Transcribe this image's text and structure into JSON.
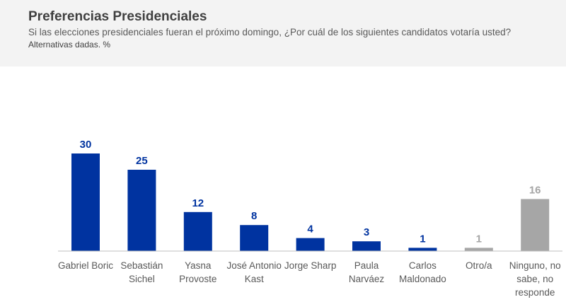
{
  "header": {
    "title": "Preferencias Presidenciales",
    "subtitle": "Si las elecciones presidenciales fueran el próximo domingo, ¿Por cuál de los siguientes candidatos votaría usted?",
    "note": "Alternativas dadas. %"
  },
  "colors": {
    "primary": "#0033a0",
    "secondary": "#a6a6a6",
    "axis": "#bfbfbf",
    "category_text": "#595959"
  },
  "chart_data": {
    "type": "bar",
    "categories": [
      [
        "Gabriel Boric"
      ],
      [
        "Sebastián",
        "Sichel"
      ],
      [
        "Yasna",
        "Provoste"
      ],
      [
        "José Antonio",
        "Kast"
      ],
      [
        "Jorge Sharp"
      ],
      [
        "Paula",
        "Narváez"
      ],
      [
        "Carlos",
        "Maldonado"
      ],
      [
        "Otro/a"
      ],
      [
        "Ninguno, no",
        "sabe, no",
        "responde"
      ]
    ],
    "values": [
      30,
      25,
      12,
      8,
      4,
      3,
      1,
      1,
      16
    ],
    "bar_colors": [
      "primary",
      "primary",
      "primary",
      "primary",
      "primary",
      "primary",
      "primary",
      "secondary",
      "secondary"
    ],
    "ylim": [
      0,
      35
    ],
    "grid": false,
    "legend": "none"
  }
}
